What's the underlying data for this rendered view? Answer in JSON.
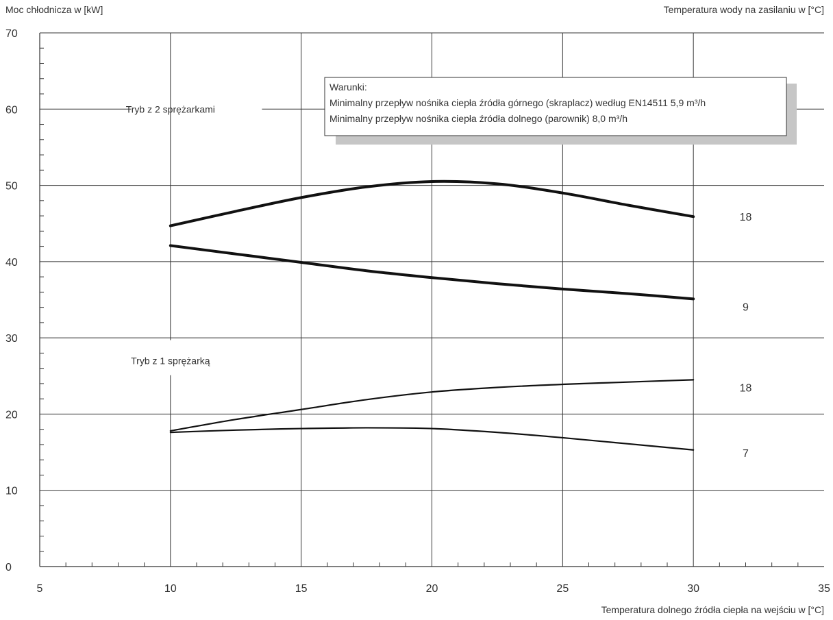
{
  "chart_data": {
    "type": "line",
    "title": "",
    "ylabel": "Moc chłodnicza w [kW]",
    "xlabel": "Temperatura dolnego źródła ciepła na wejściu w [°C]",
    "legend_title": "Temperatura wody na zasilaniu w [°C]",
    "xlim": [
      5,
      35
    ],
    "ylim": [
      0,
      70
    ],
    "x_ticks": [
      5,
      10,
      15,
      20,
      25,
      30,
      35
    ],
    "y_ticks": [
      0,
      10,
      20,
      30,
      40,
      50,
      60,
      70
    ],
    "grid": true,
    "modes": [
      {
        "label": "Tryb z 2 sprężarkami",
        "x": 10,
        "y": 60
      },
      {
        "label": "Tryb z 1 sprężarką",
        "x": 10,
        "y": 27
      }
    ],
    "note": {
      "lines": [
        "Warunki:",
        "Minimalny przepływ nośnika ciepła źródła górnego (skraplacz) według EN14511 5,9 m³/h",
        "Minimalny przepływ nośnika ciepła źródła dolnego (parownik) 8,0 m³/h"
      ]
    },
    "series": [
      {
        "name": "18",
        "mode": "2",
        "thick": true,
        "x": [
          10,
          12.5,
          15,
          17.5,
          20,
          22.5,
          25,
          27.5,
          30
        ],
        "y": [
          44.7,
          46.6,
          48.4,
          49.8,
          50.5,
          50.2,
          49.0,
          47.4,
          45.9
        ]
      },
      {
        "name": "9",
        "mode": "2",
        "thick": true,
        "x": [
          10,
          12.5,
          15,
          17.5,
          20,
          22.5,
          25,
          27.5,
          30
        ],
        "y": [
          42.1,
          41.0,
          39.9,
          38.8,
          37.9,
          37.1,
          36.4,
          35.8,
          35.1
        ]
      },
      {
        "name": "18",
        "mode": "1",
        "thick": false,
        "x": [
          10,
          12.5,
          15,
          17.5,
          20,
          22.5,
          25,
          27.5,
          30
        ],
        "y": [
          17.8,
          19.3,
          20.6,
          21.9,
          22.9,
          23.5,
          23.9,
          24.2,
          24.5
        ]
      },
      {
        "name": "7",
        "mode": "1",
        "thick": false,
        "x": [
          10,
          12.5,
          15,
          17.5,
          20,
          22.5,
          25,
          27.5,
          30
        ],
        "y": [
          17.6,
          17.9,
          18.1,
          18.2,
          18.1,
          17.6,
          16.9,
          16.1,
          15.3
        ]
      }
    ]
  }
}
